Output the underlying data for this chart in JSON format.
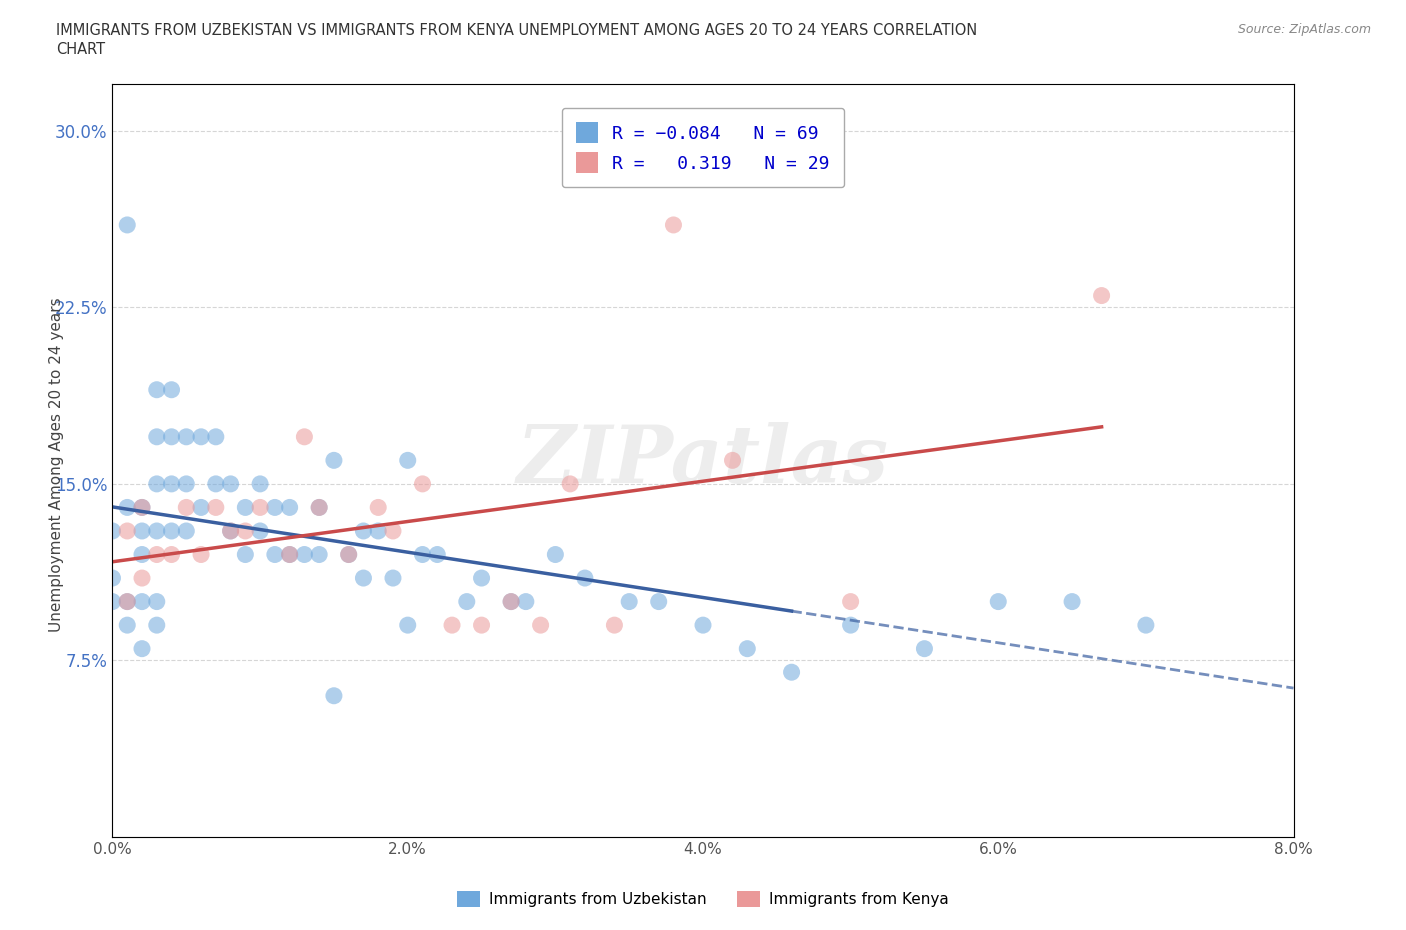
{
  "title_line1": "IMMIGRANTS FROM UZBEKISTAN VS IMMIGRANTS FROM KENYA UNEMPLOYMENT AMONG AGES 20 TO 24 YEARS CORRELATION",
  "title_line2": "CHART",
  "source": "Source: ZipAtlas.com",
  "ylabel": "Unemployment Among Ages 20 to 24 years",
  "xlim": [
    0.0,
    0.08
  ],
  "ylim": [
    0.0,
    0.32
  ],
  "x_ticks": [
    0.0,
    0.02,
    0.04,
    0.06,
    0.08
  ],
  "x_tick_labels": [
    "0.0%",
    "2.0%",
    "4.0%",
    "6.0%",
    "8.0%"
  ],
  "y_ticks": [
    0.075,
    0.15,
    0.225,
    0.3
  ],
  "y_tick_labels": [
    "7.5%",
    "15.0%",
    "22.5%",
    "30.0%"
  ],
  "uzbekistan_color": "#6fa8dc",
  "kenya_color": "#ea9999",
  "uzbekistan_R": -0.084,
  "uzbekistan_N": 69,
  "kenya_R": 0.319,
  "kenya_N": 29,
  "uzbekistan_x": [
    0.0,
    0.0,
    0.0,
    0.001,
    0.001,
    0.001,
    0.001,
    0.002,
    0.002,
    0.002,
    0.002,
    0.002,
    0.003,
    0.003,
    0.003,
    0.003,
    0.003,
    0.003,
    0.004,
    0.004,
    0.004,
    0.004,
    0.005,
    0.005,
    0.005,
    0.006,
    0.006,
    0.007,
    0.007,
    0.008,
    0.008,
    0.009,
    0.009,
    0.01,
    0.01,
    0.011,
    0.011,
    0.012,
    0.012,
    0.013,
    0.014,
    0.014,
    0.015,
    0.015,
    0.016,
    0.017,
    0.017,
    0.018,
    0.019,
    0.02,
    0.02,
    0.021,
    0.022,
    0.024,
    0.025,
    0.027,
    0.028,
    0.03,
    0.032,
    0.035,
    0.037,
    0.04,
    0.043,
    0.046,
    0.05,
    0.055,
    0.06,
    0.065,
    0.07
  ],
  "uzbekistan_y": [
    0.13,
    0.11,
    0.1,
    0.1,
    0.09,
    0.14,
    0.26,
    0.14,
    0.13,
    0.12,
    0.1,
    0.08,
    0.19,
    0.17,
    0.15,
    0.13,
    0.1,
    0.09,
    0.19,
    0.17,
    0.15,
    0.13,
    0.17,
    0.15,
    0.13,
    0.17,
    0.14,
    0.17,
    0.15,
    0.15,
    0.13,
    0.14,
    0.12,
    0.15,
    0.13,
    0.14,
    0.12,
    0.14,
    0.12,
    0.12,
    0.14,
    0.12,
    0.16,
    0.06,
    0.12,
    0.13,
    0.11,
    0.13,
    0.11,
    0.16,
    0.09,
    0.12,
    0.12,
    0.1,
    0.11,
    0.1,
    0.1,
    0.12,
    0.11,
    0.1,
    0.1,
    0.09,
    0.08,
    0.07,
    0.09,
    0.08,
    0.1,
    0.1,
    0.09
  ],
  "kenya_x": [
    0.001,
    0.001,
    0.002,
    0.002,
    0.003,
    0.004,
    0.005,
    0.006,
    0.007,
    0.008,
    0.009,
    0.01,
    0.012,
    0.013,
    0.014,
    0.016,
    0.018,
    0.019,
    0.021,
    0.023,
    0.025,
    0.027,
    0.029,
    0.031,
    0.034,
    0.038,
    0.042,
    0.05,
    0.067
  ],
  "kenya_y": [
    0.1,
    0.13,
    0.11,
    0.14,
    0.12,
    0.12,
    0.14,
    0.12,
    0.14,
    0.13,
    0.13,
    0.14,
    0.12,
    0.17,
    0.14,
    0.12,
    0.14,
    0.13,
    0.15,
    0.09,
    0.09,
    0.1,
    0.09,
    0.15,
    0.09,
    0.26,
    0.16,
    0.1,
    0.23
  ],
  "background_color": "#ffffff",
  "grid_color": "#cccccc",
  "uzbekistan_line_color": "#3a5fa0",
  "kenya_line_color": "#c94a4a",
  "legend_items": [
    {
      "label": "R = -0.084   N = 69",
      "color": "#6fa8dc"
    },
    {
      "label": "R =  0.319   N = 29",
      "color": "#ea9999"
    }
  ],
  "bottom_legend": [
    {
      "label": "Immigrants from Uzbekistan",
      "color": "#6fa8dc"
    },
    {
      "label": "Immigrants from Kenya",
      "color": "#ea9999"
    }
  ]
}
